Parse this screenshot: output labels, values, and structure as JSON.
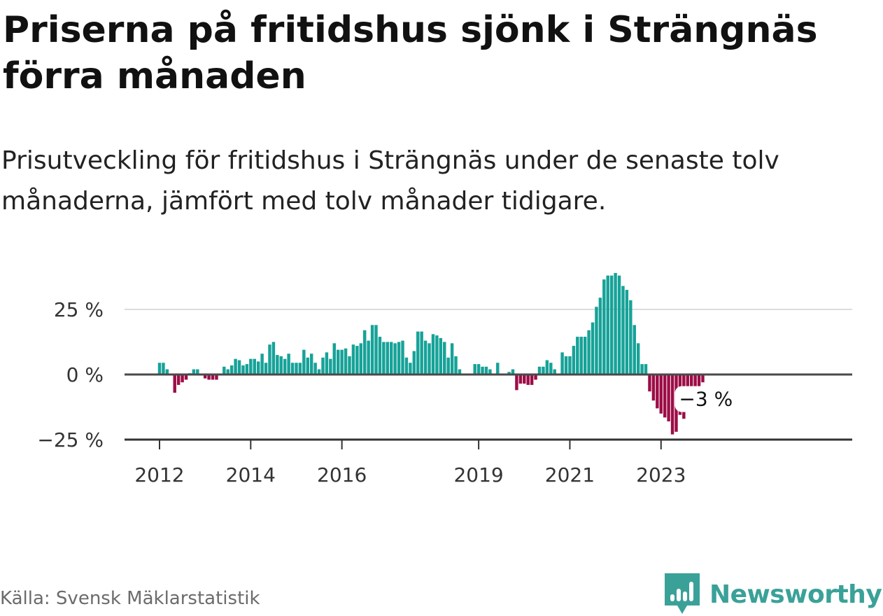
{
  "title": "Priserna på fritidshus sjönk i Strängnäs förra månaden",
  "subtitle": "Prisutveckling för fritidshus i Strängnäs under de senaste tolv månaderna, jämfört med tolv månader tidigare.",
  "source": "Källa: Svensk Mäklarstatistik",
  "brand": {
    "name": "Newsworthy",
    "logo_icon": "newsworthy-bar-chart-logo-icon",
    "color": "#3aa198"
  },
  "colors": {
    "positive": "#16a298",
    "negative": "#9c0d47",
    "zero_line": "#4a4a4a",
    "grid": "#dddddd"
  },
  "chart_data": {
    "type": "bar",
    "x_start": "2012-01",
    "x_end": "2023-12",
    "ylim": [
      -25,
      40
    ],
    "yticks": [
      {
        "value": 25,
        "label": "25 %"
      },
      {
        "value": 0,
        "label": "0 %"
      },
      {
        "value": -25,
        "label": "−25 %"
      }
    ],
    "xticks": [
      "2012",
      "2014",
      "2016",
      "2019",
      "2021",
      "2023"
    ],
    "grid": true,
    "last_value_label": "−3 %",
    "values": [
      4.5,
      4.5,
      2,
      0,
      -7,
      -4,
      -3,
      -2,
      0.5,
      2,
      2,
      0,
      -1.5,
      -2,
      -2,
      -2,
      0,
      3,
      2,
      3.5,
      6,
      5.5,
      3.5,
      4,
      6,
      6,
      5,
      8,
      4.5,
      11.5,
      12.5,
      7.5,
      7,
      6,
      8,
      4.5,
      4.5,
      4.5,
      9.5,
      6.5,
      8,
      4.5,
      2,
      6.5,
      8.5,
      6,
      12,
      9.5,
      9.5,
      10,
      7,
      11.5,
      11,
      12,
      17,
      13,
      19,
      19,
      14.5,
      12.5,
      12.5,
      12.5,
      12,
      12.5,
      13,
      6.5,
      4.5,
      9,
      16.5,
      16.5,
      13,
      12,
      15.5,
      15,
      14,
      12.5,
      6.5,
      12,
      7,
      2,
      0,
      0,
      0,
      4,
      4,
      3,
      3,
      2,
      0,
      4.5,
      0,
      0,
      1,
      2,
      -6,
      -3.5,
      -3.5,
      -4,
      -4,
      -2,
      3,
      3,
      5.5,
      4.5,
      2,
      0,
      8.5,
      7,
      7,
      11,
      14.5,
      14.5,
      14.5,
      17,
      20,
      26,
      29.5,
      36.5,
      38,
      38,
      39,
      38,
      34,
      32.5,
      28.5,
      19,
      12,
      4,
      4,
      -6.5,
      -10,
      -13,
      -15,
      -16.5,
      -18,
      -23,
      -22,
      -15.5,
      -17,
      -10,
      -7,
      -5,
      -5,
      -3
    ]
  }
}
